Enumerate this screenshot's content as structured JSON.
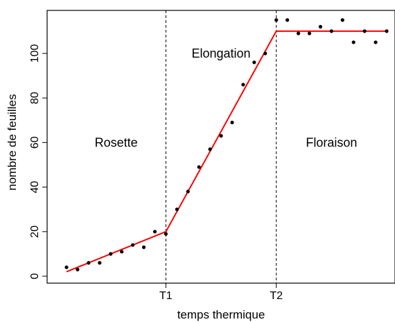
{
  "chart_data": {
    "type": "scatter",
    "xlabel": "temps thermique",
    "ylabel": "nombre de feuilles",
    "xlim": [
      0,
      30
    ],
    "ylim": [
      -2,
      117
    ],
    "x_ticks": [
      {
        "label": "T1",
        "value": 10
      },
      {
        "label": "T2",
        "value": 20
      }
    ],
    "y_ticks": [
      0,
      20,
      40,
      60,
      80,
      100
    ],
    "grid": false,
    "series": [
      {
        "kind": "points",
        "color": "#000000",
        "x": [
          1,
          2,
          3,
          4,
          5,
          6,
          7,
          8,
          9,
          10,
          11,
          12,
          13,
          14,
          15,
          16,
          17,
          18,
          19,
          20,
          21,
          22,
          23,
          24,
          25,
          26,
          27,
          28,
          29,
          30
        ],
        "y": [
          4,
          3,
          6,
          6,
          10,
          11,
          14,
          13,
          20,
          19,
          30,
          38,
          49,
          57,
          63,
          69,
          86,
          96,
          100,
          115,
          115,
          109,
          109,
          112,
          110,
          115,
          105,
          110,
          105,
          110
        ]
      },
      {
        "kind": "line",
        "color": "#ff0000",
        "x": [
          1,
          10,
          20,
          30
        ],
        "y": [
          2,
          20,
          110,
          110
        ]
      }
    ],
    "vlines": [
      10,
      20
    ],
    "annotations": [
      {
        "text": "Rosette",
        "x": 5.5,
        "y": 60
      },
      {
        "text": "Elongation",
        "x": 15,
        "y": 100
      },
      {
        "text": "Floraison",
        "x": 25,
        "y": 60
      }
    ]
  }
}
